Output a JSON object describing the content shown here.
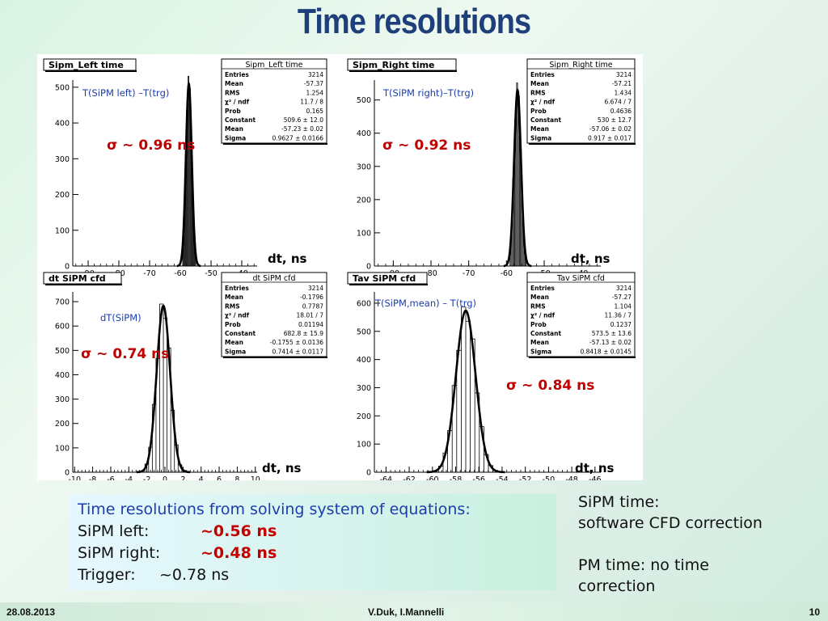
{
  "slide": {
    "title": "Time resolutions",
    "date": "28.08.2013",
    "authors": "V.Duk, I.Mannelli",
    "page": "10"
  },
  "results_box": {
    "heading": "Time resolutions from solving system of equations:",
    "rows": [
      {
        "label": "SiPM left:",
        "value": "~0.56 ns",
        "highlight": true
      },
      {
        "label": "SiPM right:",
        "value": "~0.48 ns",
        "highlight": true
      },
      {
        "label": "Trigger:",
        "value": "~0.78 ns",
        "highlight": false
      }
    ]
  },
  "notes": {
    "sipm_line1": "SiPM time:",
    "sipm_line2": "software CFD correction",
    "pm_line1": "PM time: no time",
    "pm_line2": "correction"
  },
  "colors": {
    "title": "#1f3f7a",
    "sigma_text": "#c00000",
    "label_text": "#1c3dab"
  },
  "chart_data": [
    {
      "type": "histogram",
      "name": "Sipm_Left time",
      "label": "T(SiPM left) –T(trg)",
      "sigma_text": "σ ~ 0.96 ns",
      "xlabel": "dt, ns",
      "xlim": [
        -95,
        -35
      ],
      "ylim": [
        0,
        520
      ],
      "xticks": [
        -90,
        -80,
        -70,
        -60,
        -50,
        -40
      ],
      "yticks": [
        0,
        100,
        200,
        300,
        400,
        500
      ],
      "fit": {
        "constant": 509.6,
        "mean": -57.23,
        "sigma": 0.9627
      },
      "stats": [
        [
          "Entries",
          "3214"
        ],
        [
          "Mean",
          "-57.37"
        ],
        [
          "RMS",
          "1.254"
        ],
        [
          "χ² / ndf",
          "11.7 / 8"
        ],
        [
          "Prob",
          "0.165"
        ],
        [
          "Constant",
          "509.6 ± 12.0"
        ],
        [
          "Mean",
          "-57.23 ± 0.02"
        ],
        [
          "Sigma",
          "0.9627 ± 0.0166"
        ]
      ]
    },
    {
      "type": "histogram",
      "name": "Sipm_Right time",
      "label": "T(SiPM right)–T(trg)",
      "sigma_text": "σ ~ 0.92 ns",
      "xlabel": "dt, ns",
      "xlim": [
        -95,
        -35
      ],
      "ylim": [
        0,
        560
      ],
      "xticks": [
        -90,
        -80,
        -70,
        -60,
        -50,
        -40
      ],
      "yticks": [
        0,
        100,
        200,
        300,
        400,
        500
      ],
      "fit": {
        "constant": 530,
        "mean": -57.06,
        "sigma": 0.917
      },
      "stats": [
        [
          "Entries",
          "3214"
        ],
        [
          "Mean",
          "-57.21"
        ],
        [
          "RMS",
          "1.434"
        ],
        [
          "χ² / ndf",
          "6.674 / 7"
        ],
        [
          "Prob",
          "0.4636"
        ],
        [
          "Constant",
          "530 ± 12.7"
        ],
        [
          "Mean",
          "-57.06 ± 0.02"
        ],
        [
          "Sigma",
          "0.917 ± 0.017"
        ]
      ]
    },
    {
      "type": "histogram",
      "name": "dt SiPM cfd",
      "label": "dT(SiPM)",
      "sigma_text": "σ ~ 0.74 ns",
      "xlabel": "dt, ns",
      "xlim": [
        -10.2,
        10.2
      ],
      "ylim": [
        0,
        740
      ],
      "xticks": [
        -10,
        -8,
        -6,
        -4,
        -2,
        0,
        2,
        4,
        6,
        8,
        10
      ],
      "yticks": [
        0,
        100,
        200,
        300,
        400,
        500,
        600,
        700
      ],
      "fit": {
        "constant": 682.8,
        "mean": -0.1755,
        "sigma": 0.7414
      },
      "stats": [
        [
          "Entries",
          "3214"
        ],
        [
          "Mean",
          "-0.1796"
        ],
        [
          "RMS",
          "0.7787"
        ],
        [
          "χ² / ndf",
          "18.01 / 7"
        ],
        [
          "Prob",
          "0.01194"
        ],
        [
          "Constant",
          "682.8 ± 15.9"
        ],
        [
          "Mean",
          "-0.1755 ± 0.0136"
        ],
        [
          "Sigma",
          "0.7414 ± 0.0117"
        ]
      ]
    },
    {
      "type": "histogram",
      "name": "Tav SiPM cfd",
      "label": "T(SiPM,mean) – T(trg)",
      "sigma_text": "σ ~ 0.84 ns",
      "xlabel": "dt, ns",
      "xlim": [
        -65,
        -45.5
      ],
      "ylim": [
        0,
        640
      ],
      "xticks": [
        -64,
        -62,
        -60,
        -58,
        -56,
        -54,
        -52,
        -50,
        -48,
        -46
      ],
      "yticks": [
        0,
        100,
        200,
        300,
        400,
        500,
        600
      ],
      "fit": {
        "constant": 573.5,
        "mean": -57.13,
        "sigma": 0.8418
      },
      "stats": [
        [
          "Entries",
          "3214"
        ],
        [
          "Mean",
          "-57.27"
        ],
        [
          "RMS",
          "1.104"
        ],
        [
          "χ² / ndf",
          "11.36 / 7"
        ],
        [
          "Prob",
          "0.1237"
        ],
        [
          "Constant",
          "573.5 ± 13.6"
        ],
        [
          "Mean",
          "-57.13 ± 0.02"
        ],
        [
          "Sigma",
          "0.8418 ± 0.0145"
        ]
      ]
    }
  ]
}
